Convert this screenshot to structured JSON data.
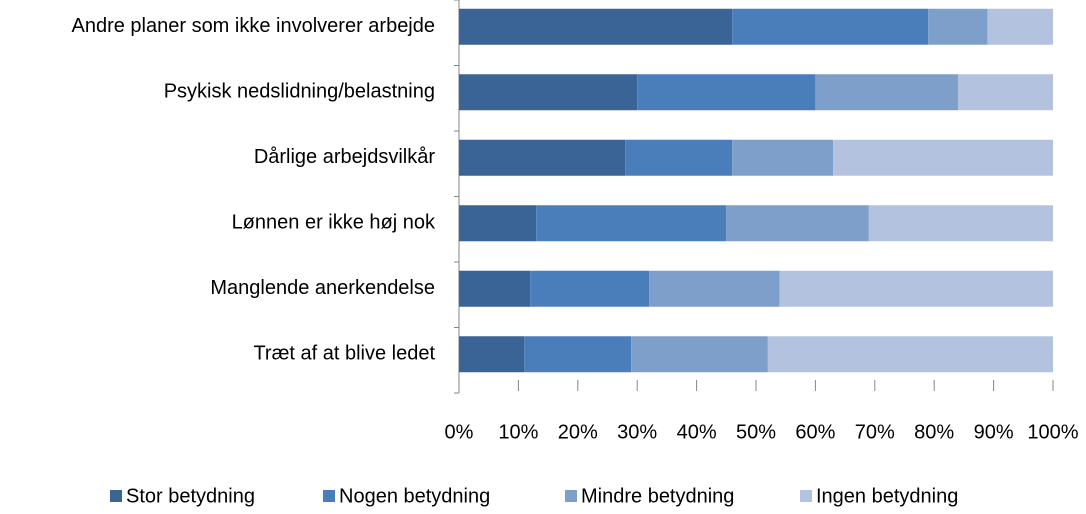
{
  "chart_data": {
    "type": "stacked_bar_horizontal",
    "categories": [
      "Andre planer som ikke involverer arbejde",
      "Psykisk nedslidning/belastning",
      "Dårlige arbejdsvilkår",
      "Lønnen er ikke høj nok",
      "Manglende anerkendelse",
      "Træt af at blive ledet"
    ],
    "series": [
      {
        "name": "Stor betydning",
        "color": "#3b6496",
        "values": [
          46,
          30,
          28,
          13,
          12,
          11
        ]
      },
      {
        "name": "Nogen betydning",
        "color": "#4a7ebb",
        "values": [
          33,
          30,
          18,
          32,
          20,
          18
        ]
      },
      {
        "name": "Mindre betydning",
        "color": "#7f9fcb",
        "values": [
          10,
          24,
          17,
          24,
          22,
          23
        ]
      },
      {
        "name": "Ingen betydning",
        "color": "#b3c3df",
        "values": [
          11,
          16,
          37,
          31,
          46,
          48
        ]
      }
    ],
    "xlim": [
      0,
      100
    ],
    "xticks": [
      {
        "value": 0,
        "label": "0%"
      },
      {
        "value": 10,
        "label": "10%"
      },
      {
        "value": 20,
        "label": "20%"
      },
      {
        "value": 30,
        "label": "30%"
      },
      {
        "value": 40,
        "label": "40%"
      },
      {
        "value": 50,
        "label": "50%"
      },
      {
        "value": 60,
        "label": "60%"
      },
      {
        "value": 70,
        "label": "70%"
      },
      {
        "value": 80,
        "label": "80%"
      },
      {
        "value": 90,
        "label": "90%"
      },
      {
        "value": 100,
        "label": "100%"
      }
    ],
    "legend": "bottom"
  }
}
